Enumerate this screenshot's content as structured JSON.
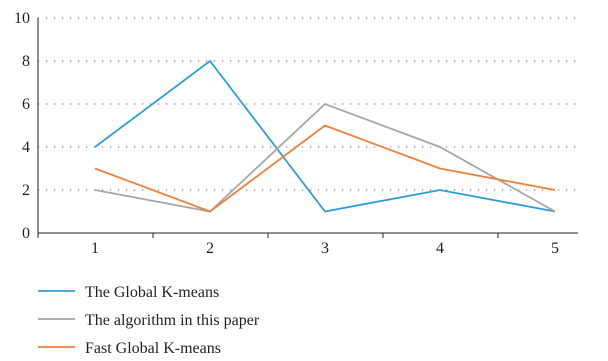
{
  "chart_data": {
    "type": "line",
    "x": [
      1,
      2,
      3,
      4,
      5
    ],
    "series": [
      {
        "name": "The Global K-means",
        "values": [
          4,
          8,
          1,
          2,
          1
        ],
        "color": "#2b9fd6"
      },
      {
        "name": "The algorithm in this paper",
        "values": [
          2,
          1,
          6,
          4,
          1
        ],
        "color": "#a6a6a6"
      },
      {
        "name": "Fast Global K-means",
        "values": [
          3,
          1,
          5,
          3,
          2
        ],
        "color": "#f07f3a"
      }
    ],
    "ylim": [
      0,
      10
    ],
    "yticks": [
      0,
      2,
      4,
      6,
      8,
      10
    ],
    "grid": "horizontal-dotted",
    "legend_position": "bottom-left"
  }
}
